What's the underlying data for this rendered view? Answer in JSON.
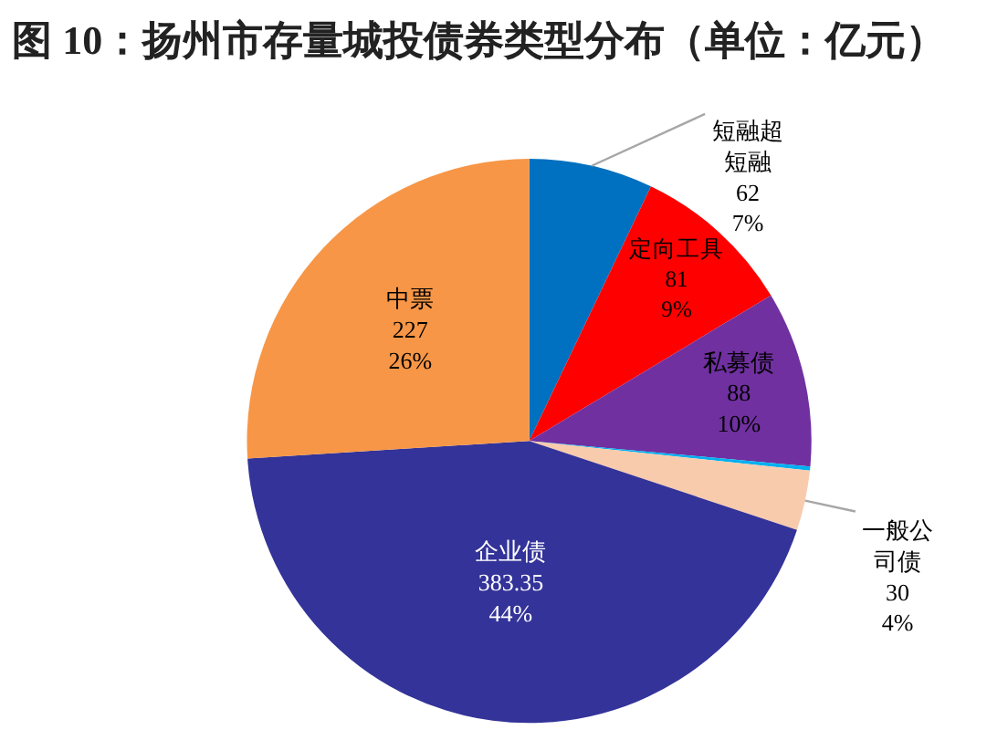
{
  "chart_data": {
    "type": "pie",
    "title": "图 10：扬州市存量城投债券类型分布（单位：亿元）",
    "categories": [
      "短融超短融",
      "定向工具",
      "私募债",
      null,
      "一般公司债",
      "企业债",
      "中票"
    ],
    "values": [
      62,
      81,
      88,
      2,
      30,
      383.35,
      227
    ],
    "colors": [
      "#0070c0",
      "#ff0000",
      "#7030a0",
      "#00b0f0",
      "#f8cbad",
      "#333399",
      "#f79646"
    ],
    "value_labels": [
      "62\n7%",
      "81\n9%",
      "88\n10%",
      null,
      "30\n4%",
      "383.35\n44%",
      "227\n26%"
    ],
    "legend": false
  }
}
